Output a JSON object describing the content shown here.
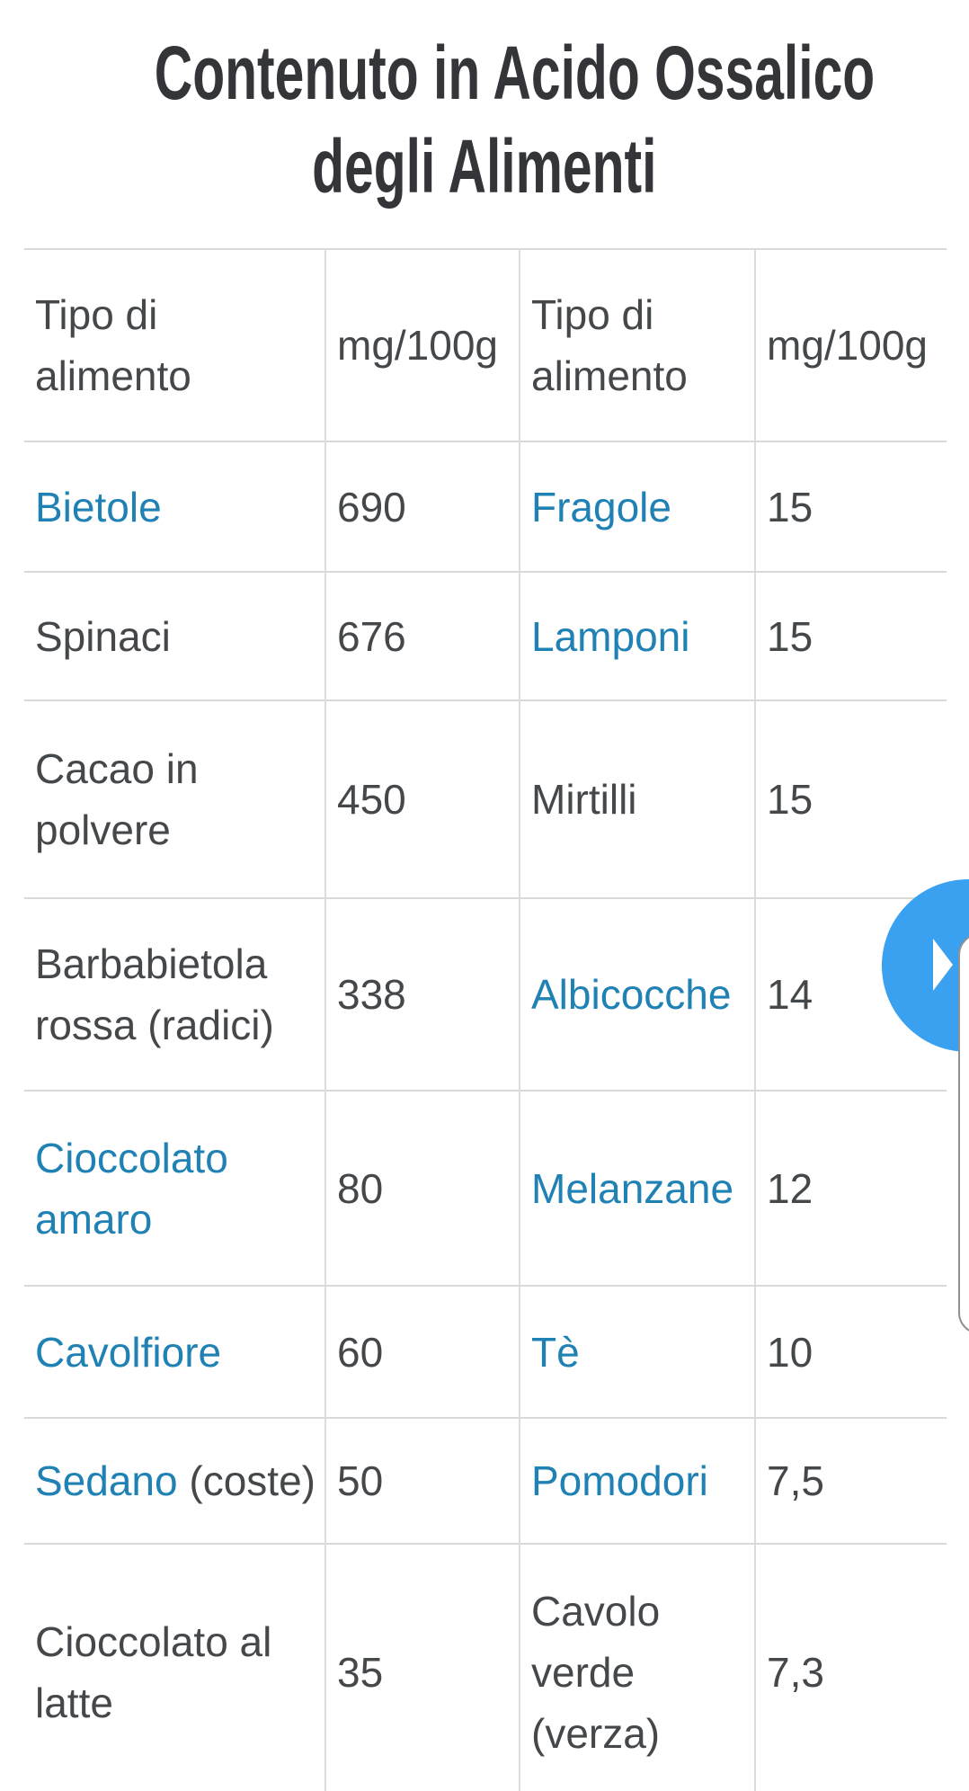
{
  "page": {
    "title_line1": "Contenuto in Acido Ossalico",
    "title_line2": "degli Alimenti"
  },
  "table": {
    "headers": {
      "col1": "Tipo di\nalimento",
      "col2": "mg/100g",
      "col3": "Tipo di\nalimento",
      "col4": "mg/100g"
    },
    "rows": [
      {
        "food1": "Bietole",
        "val1": "690",
        "food2": "Fragole",
        "val2": "15"
      },
      {
        "food1": "Spinaci",
        "val1": "676",
        "food2": "Lamponi",
        "val2": "15"
      },
      {
        "food1": "Cacao in\npolvere",
        "val1": "450",
        "food2": "Mirtilli",
        "val2": "15"
      },
      {
        "food1": "Barbabietola\nrossa (radici)",
        "val1": "338",
        "food2": "Albicocche",
        "val2": "14"
      },
      {
        "food1": "Cioccolato\namaro",
        "val1": "80",
        "food2": "Melanzane",
        "val2": "12"
      },
      {
        "food1": "Cavolfiore",
        "val1": "60",
        "food2": "Tè",
        "val2": "10"
      },
      {
        "food1_link": "Sedano",
        "food1_rest": " (coste)",
        "val1": "50",
        "food2": "Pomodori",
        "val2": "7,5"
      },
      {
        "food1": "Cioccolato al\nlatte",
        "val1": "35",
        "food2": "Cavolo\nverde\n(verza)",
        "val2": "7,3"
      }
    ]
  },
  "controls": {
    "next_button_icon": "play-arrow-icon"
  },
  "colors": {
    "link_blue": "#1f81b4",
    "button_blue": "#3aa1f0",
    "body_text": "#45484b",
    "title_text": "#333538",
    "table_border": "#d9d9d9",
    "panel_border": "#8f9193"
  }
}
